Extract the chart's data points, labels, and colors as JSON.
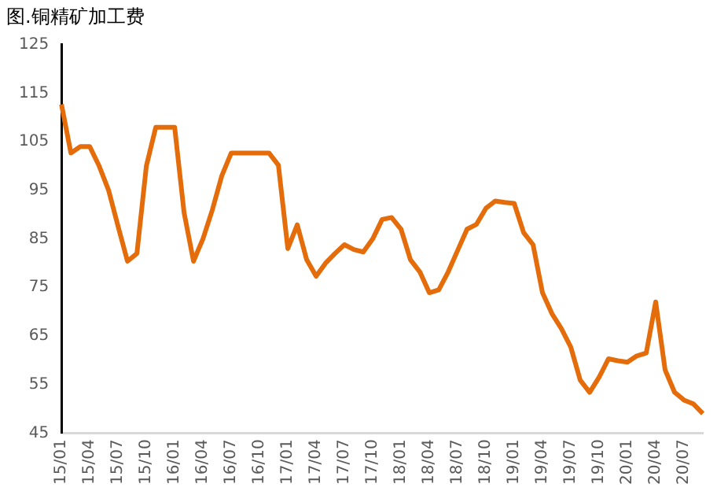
{
  "chart_data": {
    "type": "line",
    "title": "图.铜精矿加工费",
    "categories": [
      "15/01",
      null,
      null,
      "15/04",
      null,
      null,
      "15/07",
      null,
      null,
      "15/10",
      null,
      null,
      "16/01",
      null,
      null,
      "16/04",
      null,
      null,
      "16/07",
      null,
      null,
      "16/10",
      null,
      null,
      "17/01",
      null,
      null,
      "17/04",
      null,
      null,
      "17/07",
      null,
      null,
      "17/10",
      null,
      null,
      "18/01",
      null,
      null,
      "18/04",
      null,
      null,
      "18/07",
      null,
      null,
      "18/10",
      null,
      null,
      "19/01",
      null,
      null,
      "19/04",
      null,
      null,
      "19/07",
      null,
      null,
      "19/10",
      null,
      null,
      "20/01",
      null,
      null,
      "20/04",
      null,
      null,
      "20/07",
      null,
      null
    ],
    "series": [
      {
        "color": "#e46c0a",
        "values": [
          112.7,
          102.7,
          104,
          104,
          100,
          95,
          87.6,
          80.4,
          82,
          100,
          108,
          108,
          108,
          90.4,
          80.4,
          85,
          91,
          98,
          102.7,
          102.7,
          102.7,
          102.7,
          102.7,
          100.2,
          83,
          87.9,
          80.7,
          77.3,
          80,
          82,
          83.8,
          82.8,
          82.3,
          85,
          89,
          89.4,
          87,
          80.7,
          78.2,
          73.9,
          74.5,
          78.2,
          82.6,
          87,
          88,
          91.3,
          92.8,
          92.5,
          92.3,
          86.3,
          83.8,
          73.9,
          69.6,
          66.5,
          62.7,
          55.9,
          53.4,
          56.5,
          60.3,
          59.9,
          59.6,
          60.9,
          61.5,
          72,
          58,
          53.4,
          51.8,
          51,
          49
        ]
      }
    ],
    "ylim": [
      45,
      125
    ],
    "yticks": [
      45,
      55,
      65,
      75,
      85,
      95,
      105,
      115,
      125
    ],
    "grid": false,
    "legend": false,
    "marker": "none",
    "line_style": "solid"
  }
}
